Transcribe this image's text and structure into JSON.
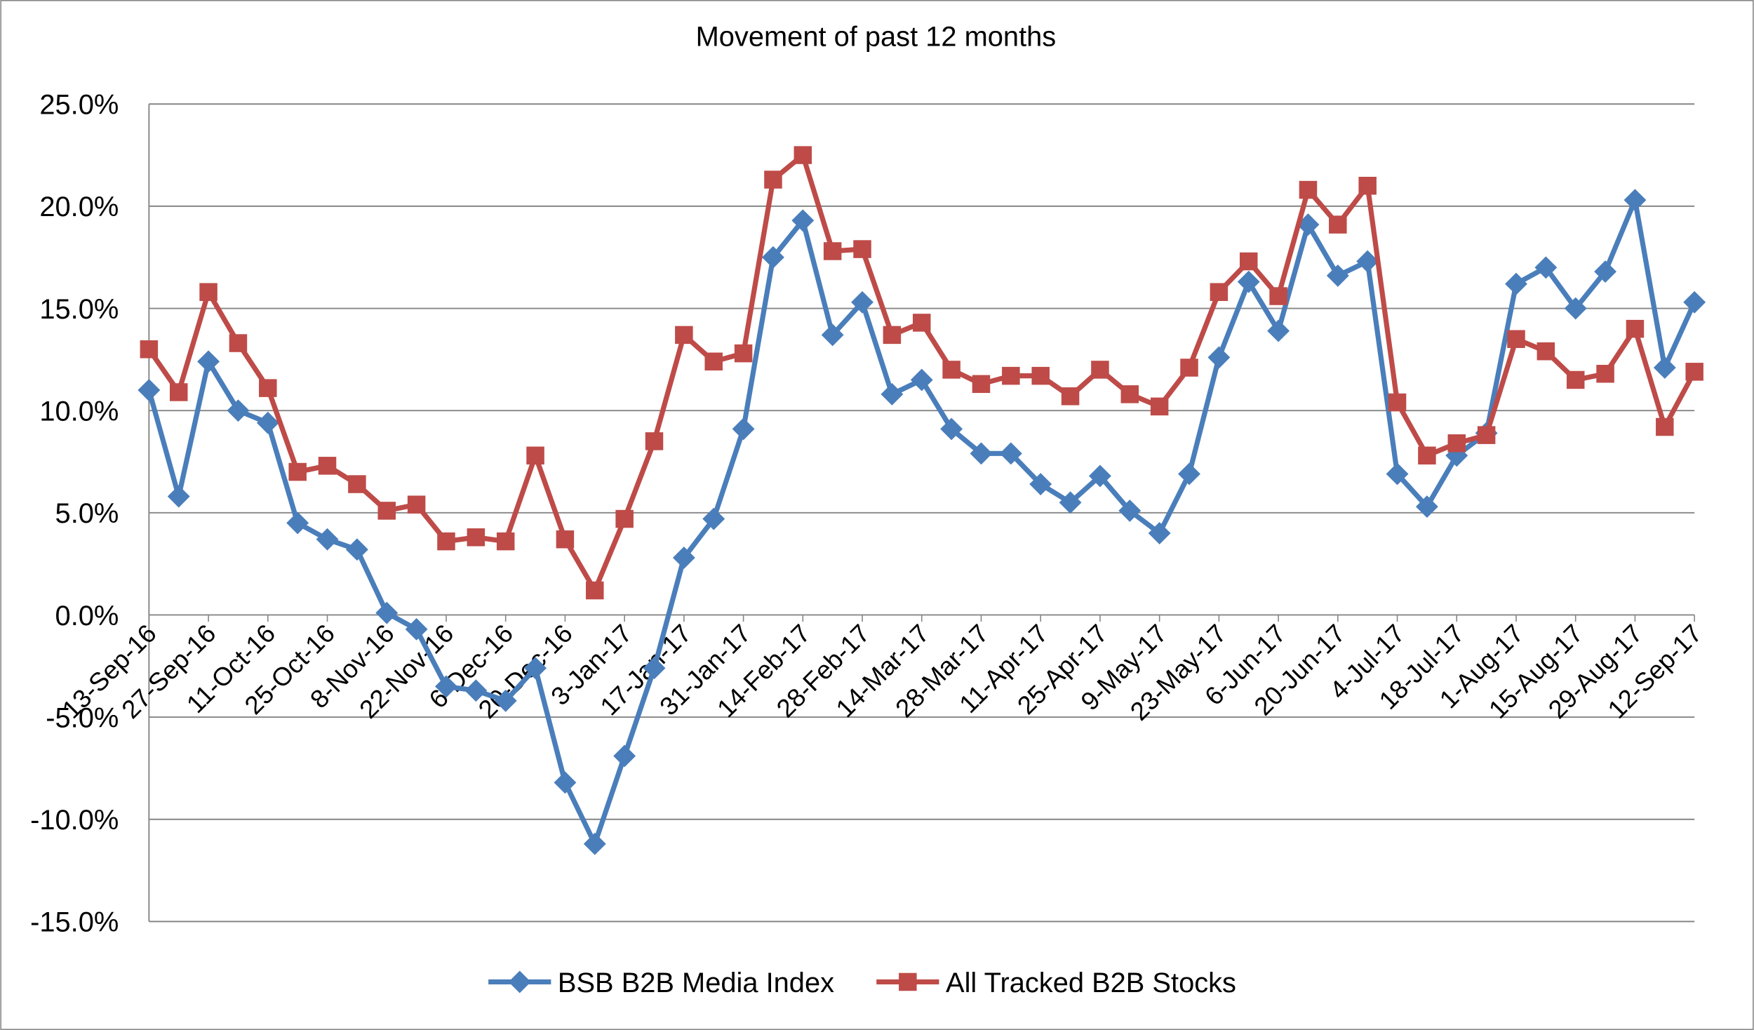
{
  "chart_data": {
    "type": "line",
    "title": "Movement of past 12 months",
    "categories": [
      "13-Sep-16",
      null,
      "27-Sep-16",
      null,
      "11-Oct-16",
      null,
      "25-Oct-16",
      null,
      "8-Nov-16",
      null,
      "22-Nov-16",
      null,
      "6-Dec-16",
      null,
      "20-Dec-16",
      null,
      "3-Jan-17",
      null,
      "17-Jan-17",
      null,
      "31-Jan-17",
      null,
      "14-Feb-17",
      null,
      "28-Feb-17",
      null,
      "14-Mar-17",
      null,
      "28-Mar-17",
      null,
      "11-Apr-17",
      null,
      "25-Apr-17",
      null,
      "9-May-17",
      null,
      "23-May-17",
      null,
      "6-Jun-17",
      null,
      "20-Jun-17",
      null,
      "4-Jul-17",
      null,
      "18-Jul-17",
      null,
      "1-Aug-17",
      null,
      "15-Aug-17",
      null,
      "29-Aug-17",
      null,
      "12-Sep-17"
    ],
    "series": [
      {
        "name": "BSB B2B Media Index",
        "color": "#4a7ebb",
        "marker": "diamond",
        "values": [
          11.0,
          5.8,
          12.4,
          10.0,
          9.4,
          4.5,
          3.7,
          3.2,
          0.1,
          -0.7,
          -3.5,
          -3.7,
          -4.2,
          -2.6,
          -8.2,
          -11.2,
          -6.9,
          -2.6,
          2.8,
          4.7,
          9.1,
          17.5,
          19.3,
          13.7,
          15.3,
          10.8,
          11.5,
          9.1,
          7.9,
          7.9,
          6.4,
          5.5,
          6.8,
          5.1,
          4.0,
          6.9,
          12.6,
          16.3,
          13.9,
          19.1,
          16.6,
          17.3,
          6.9,
          5.3,
          7.8,
          8.9,
          16.2,
          17.0,
          15.0,
          16.8,
          20.3,
          12.1,
          15.3
        ]
      },
      {
        "name": "All Tracked B2B Stocks",
        "color": "#be4b48",
        "marker": "square",
        "values": [
          13.0,
          10.9,
          15.8,
          13.3,
          11.1,
          7.0,
          7.3,
          6.4,
          5.1,
          5.4,
          3.6,
          3.8,
          3.6,
          7.8,
          3.7,
          1.2,
          4.7,
          8.5,
          13.7,
          12.4,
          12.8,
          21.3,
          22.5,
          17.8,
          17.9,
          13.7,
          14.3,
          12.0,
          11.3,
          11.7,
          11.7,
          10.7,
          12.0,
          10.8,
          10.2,
          12.1,
          15.8,
          17.3,
          15.6,
          20.8,
          19.1,
          21.0,
          10.4,
          7.8,
          8.4,
          8.8,
          13.5,
          12.9,
          11.5,
          11.8,
          14.0,
          9.2,
          11.9
        ]
      }
    ],
    "ylim": [
      -15,
      25
    ],
    "yticks": [
      {
        "value": -15,
        "label": "-15.0%"
      },
      {
        "value": -10,
        "label": "-10.0%"
      },
      {
        "value": -5,
        "label": "-5.0%"
      },
      {
        "value": 0,
        "label": "0.0%"
      },
      {
        "value": 5,
        "label": "5.0%"
      },
      {
        "value": 10,
        "label": "10.0%"
      },
      {
        "value": 15,
        "label": "15.0%"
      },
      {
        "value": 20,
        "label": "20.0%"
      },
      {
        "value": 25,
        "label": "25.0%"
      }
    ],
    "grid": true,
    "legend": "bottom"
  }
}
